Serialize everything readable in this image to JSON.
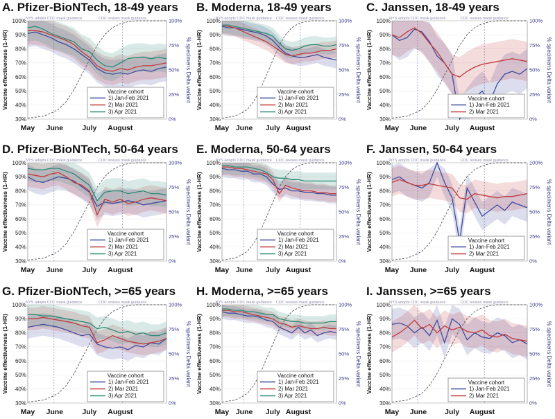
{
  "chart_data": {
    "type": "line",
    "layout": "3x3 small multiples",
    "ylabel_left": "Vaccine effectiveness (1-HR)",
    "ylabel_right": "% specimens Delta variant",
    "yticks_left": [
      "30%",
      "40%",
      "50%",
      "60%",
      "70%",
      "80%",
      "90%",
      "100%"
    ],
    "yticks_right": [
      "0%",
      "25%",
      "50%",
      "75%",
      "100%"
    ],
    "ylim_left": [
      30,
      100
    ],
    "ylim_right": [
      0,
      100
    ],
    "xtick_labels": [
      "May",
      "June",
      "July",
      "August"
    ],
    "xtick_weeks": [
      0,
      3.5,
      8,
      12
    ],
    "annotations": [
      "NYS adopts CDC mask guidance",
      "CDC revises mask guidance"
    ],
    "annotation_weeks": [
      3.4,
      12.3
    ],
    "legend_title": "Vaccine cohort",
    "series_meta": [
      {
        "key": "jan",
        "name": "1) Jan-Feb 2021",
        "color": "#3c4a9c"
      },
      {
        "key": "mar",
        "name": "2) Mar 2021",
        "color": "#c0393b"
      },
      {
        "key": "apr",
        "name": "3) Apr 2021",
        "color": "#2a8a73"
      }
    ],
    "delta_share": [
      1,
      2,
      3,
      6,
      10,
      18,
      30,
      45,
      60,
      75,
      86,
      93,
      97,
      99,
      100,
      100,
      100,
      100,
      100
    ],
    "panels": [
      {
        "title": "A. Pfizer-BioNTech, 18-49 years",
        "band": 10,
        "series": {
          "jan": [
            91,
            92,
            90,
            88,
            85,
            83,
            80,
            76,
            72,
            66,
            63,
            62,
            63,
            62,
            64,
            65,
            64,
            66,
            67
          ],
          "mar": [
            93,
            93,
            92,
            90,
            88,
            86,
            83,
            78,
            74,
            68,
            65,
            64,
            66,
            65,
            67,
            68,
            68,
            69,
            70
          ],
          "apr": [
            95,
            96,
            94,
            91,
            89,
            87,
            85,
            80,
            78,
            72,
            68,
            67,
            70,
            73,
            74,
            74,
            73,
            74,
            73
          ]
        }
      },
      {
        "title": "B. Moderna, 18-49 years",
        "band": 6,
        "series": {
          "jan": [
            96,
            95,
            95,
            94,
            93,
            92,
            91,
            89,
            86,
            81,
            77,
            75,
            74,
            74,
            75,
            76,
            74,
            73,
            72
          ],
          "mar": [
            97,
            96,
            95,
            93,
            91,
            89,
            87,
            85,
            82,
            79,
            76,
            75,
            76,
            77,
            77,
            78,
            79,
            79,
            80
          ],
          "apr": [
            97,
            97,
            96,
            95,
            94,
            93,
            92,
            91,
            89,
            84,
            80,
            79,
            80,
            82,
            83,
            83,
            82,
            82,
            83
          ]
        }
      },
      {
        "title": "C. Janssen, 18-49 years",
        "band": 14,
        "series": {
          "jan": [
            90,
            86,
            88,
            94,
            92,
            85,
            75,
            70,
            62,
            30,
            38,
            45,
            50,
            42,
            55,
            62,
            64,
            62,
            66
          ],
          "mar": [
            90,
            88,
            92,
            95,
            91,
            84,
            78,
            70,
            62,
            60,
            64,
            67,
            69,
            70,
            71,
            72,
            73,
            72,
            71
          ]
        }
      },
      {
        "title": "D. Pfizer-BioNTech, 50-64 years",
        "band": 9,
        "series": {
          "jan": [
            90,
            87,
            86,
            88,
            90,
            89,
            87,
            83,
            79,
            69,
            72,
            71,
            72,
            73,
            72,
            70,
            71,
            72,
            73
          ],
          "mar": [
            92,
            91,
            90,
            92,
            93,
            90,
            86,
            84,
            80,
            63,
            74,
            72,
            74,
            71,
            72,
            74,
            75,
            74,
            73
          ],
          "apr": [
            96,
            95,
            95,
            96,
            96,
            94,
            92,
            88,
            84,
            73,
            79,
            80,
            80,
            78,
            79,
            80,
            78,
            78,
            77
          ]
        }
      },
      {
        "title": "E. Moderna, 50-64 years",
        "band": 6,
        "series": {
          "jan": [
            96,
            95,
            95,
            94,
            94,
            92,
            92,
            90,
            85,
            81,
            82,
            80,
            80,
            79,
            79,
            78,
            78,
            77,
            77
          ],
          "mar": [
            97,
            97,
            96,
            96,
            95,
            94,
            93,
            92,
            88,
            78,
            84,
            82,
            81,
            80,
            80,
            79,
            79,
            78,
            78
          ],
          "apr": [
            98,
            98,
            97,
            97,
            97,
            96,
            95,
            93,
            90,
            89,
            89,
            88,
            88,
            87,
            87,
            87,
            87,
            87,
            87
          ]
        }
      },
      {
        "title": "F. Janssen, 50-64 years",
        "band": 10,
        "series": {
          "jan": [
            88,
            90,
            86,
            84,
            82,
            86,
            100,
            86,
            75,
            44,
            82,
            72,
            62,
            66,
            70,
            66,
            72,
            70,
            68
          ],
          "mar": [
            86,
            88,
            86,
            84,
            84,
            85,
            84,
            83,
            82,
            75,
            74,
            78,
            77,
            76,
            75,
            76,
            76,
            77,
            78
          ]
        }
      },
      {
        "title": "G. Pfizer-BioNTech, >=65 years",
        "band": 8,
        "series": {
          "jan": [
            84,
            85,
            86,
            85,
            84,
            82,
            80,
            78,
            79,
            72,
            70,
            69,
            70,
            68,
            71,
            70,
            73,
            72,
            76
          ],
          "mar": [
            90,
            90,
            91,
            90,
            89,
            88,
            87,
            85,
            84,
            73,
            75,
            78,
            76,
            74,
            73,
            72,
            73,
            74,
            76
          ],
          "apr": [
            93,
            93,
            92,
            92,
            91,
            90,
            89,
            88,
            87,
            83,
            84,
            82,
            80,
            81,
            79,
            80,
            78,
            78,
            80
          ]
        }
      },
      {
        "title": "H. Moderna, >=65 years",
        "band": 5,
        "series": {
          "jan": [
            95,
            94,
            94,
            93,
            92,
            92,
            91,
            89,
            88,
            84,
            82,
            80,
            84,
            80,
            82,
            78,
            80,
            81,
            80
          ],
          "mar": [
            96,
            96,
            95,
            95,
            94,
            93,
            92,
            91,
            90,
            87,
            86,
            84,
            85,
            84,
            83,
            83,
            84,
            83,
            83
          ],
          "apr": [
            97,
            97,
            96,
            96,
            95,
            95,
            94,
            93,
            93,
            90,
            89,
            88,
            88,
            87,
            87,
            87,
            87,
            88,
            88
          ]
        }
      },
      {
        "title": "I. Janssen, >=65 years",
        "band": 11,
        "series": {
          "jan": [
            86,
            87,
            85,
            80,
            84,
            78,
            89,
            73,
            90,
            86,
            75,
            80,
            77,
            76,
            80,
            78,
            73,
            75,
            72
          ],
          "mar": [
            77,
            80,
            84,
            89,
            83,
            86,
            80,
            85,
            82,
            84,
            81,
            80,
            82,
            78,
            77,
            79,
            76,
            75,
            74
          ]
        }
      }
    ]
  }
}
